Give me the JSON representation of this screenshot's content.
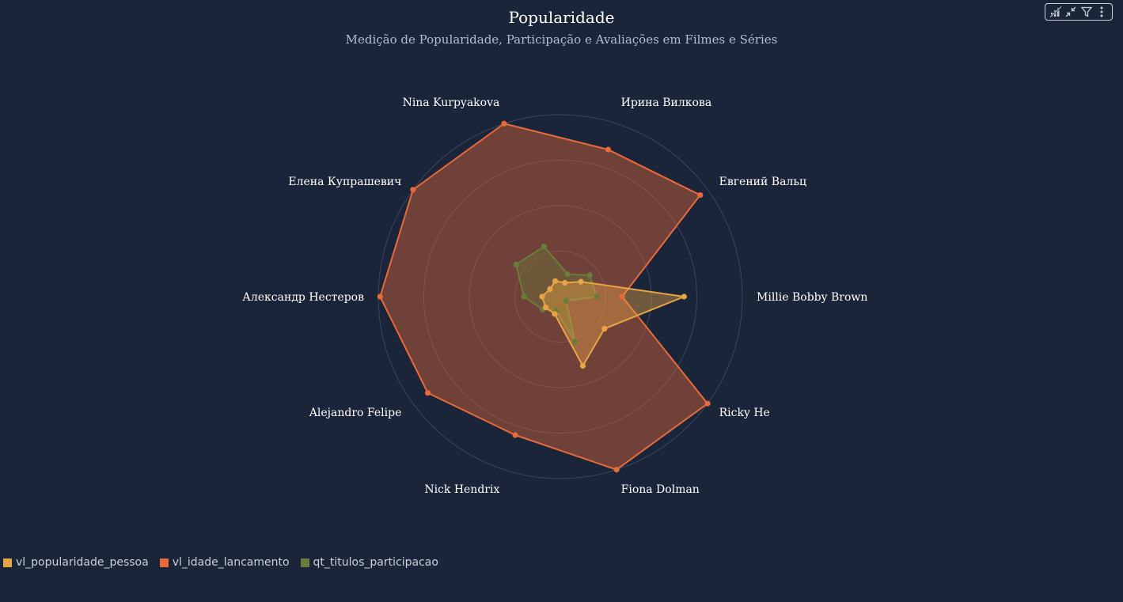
{
  "chart_data": {
    "type": "radar",
    "title": "Popularidade",
    "subtitle": "Medição de Popularidade, Participação e Avaliações em Filmes e Séries",
    "categories": [
      "Millie Bobby Brown",
      "Ricky He",
      "Fiona Dolman",
      "Nick Hendrix",
      "Alejandro Felipe",
      "Александр Нестеров",
      "Елена Купрашевич",
      "Nina Kurpyakova",
      "Ирина Вилкова",
      "Евгений Вальц"
    ],
    "rmax": 100,
    "grid_rings": [
      0,
      25,
      50,
      75,
      100
    ],
    "series": [
      {
        "name": "vl_idade_lancamento",
        "color": "#e8693a",
        "values": [
          34,
          100,
          100,
          80,
          90,
          99,
          100,
          100,
          85,
          95
        ]
      },
      {
        "name": "qt_titulos_participacao",
        "color": "#6a7d3a",
        "values": [
          20,
          4,
          26,
          8,
          12,
          20,
          30,
          29,
          13,
          20
        ]
      },
      {
        "name": "vl_popularidade_pessoa",
        "color": "#e8a444",
        "values": [
          68,
          30,
          40,
          10,
          10,
          10,
          7,
          9,
          8,
          14
        ]
      }
    ],
    "legend": {
      "position": "bottom-left",
      "items": [
        {
          "name": "vl_popularidade_pessoa",
          "color": "#e8a444"
        },
        {
          "name": "vl_idade_lancamento",
          "color": "#e8693a"
        },
        {
          "name": "qt_titulos_participacao",
          "color": "#6a7d3a"
        }
      ]
    }
  },
  "toolbar": {
    "icons": [
      "chart-type-icon",
      "collapse-icon",
      "filter-icon",
      "more-icon"
    ]
  }
}
